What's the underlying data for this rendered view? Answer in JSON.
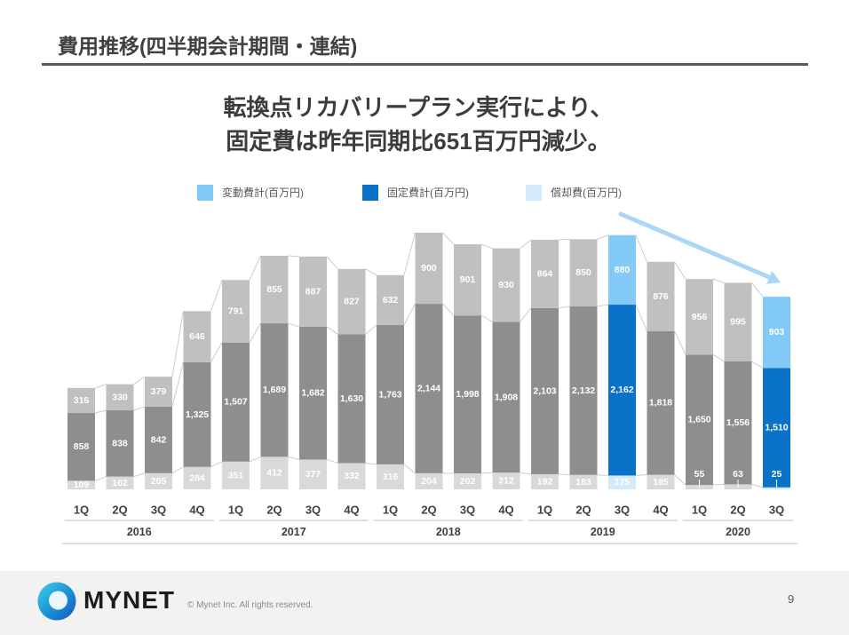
{
  "header": {
    "title": "費用推移(四半期会計期間・連結)"
  },
  "headline": {
    "line1": "転換点リカバリープラン実行により、",
    "line2": "固定費は昨年同期比651百万円減少。"
  },
  "chart_data": {
    "type": "bar",
    "stacked": true,
    "categories": [
      "1Q",
      "2Q",
      "3Q",
      "4Q",
      "1Q",
      "2Q",
      "3Q",
      "4Q",
      "1Q",
      "2Q",
      "3Q",
      "4Q",
      "1Q",
      "2Q",
      "3Q",
      "4Q",
      "1Q",
      "2Q",
      "3Q"
    ],
    "years": [
      {
        "label": "2016",
        "quarters": 4
      },
      {
        "label": "2017",
        "quarters": 4
      },
      {
        "label": "2018",
        "quarters": 4
      },
      {
        "label": "2019",
        "quarters": 4
      },
      {
        "label": "2020",
        "quarters": 3
      }
    ],
    "series": [
      {
        "name": "償却費(百万円)",
        "color": "#d9d9d9",
        "highlight_color": "#d3eafb",
        "values": [
          109,
          162,
          205,
          284,
          351,
          412,
          377,
          332,
          316,
          204,
          202,
          212,
          192,
          183,
          175,
          185,
          55,
          63,
          25
        ]
      },
      {
        "name": "固定費計(百万円)",
        "color": "#8e8e8e",
        "highlight_color": "#0a72c8",
        "values": [
          858,
          838,
          842,
          1325,
          1507,
          1689,
          1682,
          1630,
          1763,
          2144,
          1998,
          1908,
          2103,
          2132,
          2162,
          1818,
          1650,
          1556,
          1510
        ]
      },
      {
        "name": "変動費計(百万円)",
        "color": "#c0c0c0",
        "highlight_color": "#84caf6",
        "values": [
          316,
          330,
          379,
          646,
          791,
          855,
          887,
          827,
          632,
          900,
          901,
          930,
          864,
          850,
          880,
          876,
          956,
          995,
          903
        ]
      }
    ],
    "highlighted_categories": [
      14,
      18
    ],
    "highlight_label_color": "#0070c0",
    "data_label_color": "#ffffff",
    "series_line_color": "#cccccc",
    "trend_arrow_color": "#a9d7f6",
    "legend_position": "top",
    "grid": false
  },
  "footer": {
    "brand": "MYNET",
    "copyright": "© Mynet Inc. All rights reserved.",
    "page_number": "9"
  },
  "theme": {
    "text": "#404040",
    "title_rule": "#595959",
    "footer_background": "#f2f2f2"
  }
}
